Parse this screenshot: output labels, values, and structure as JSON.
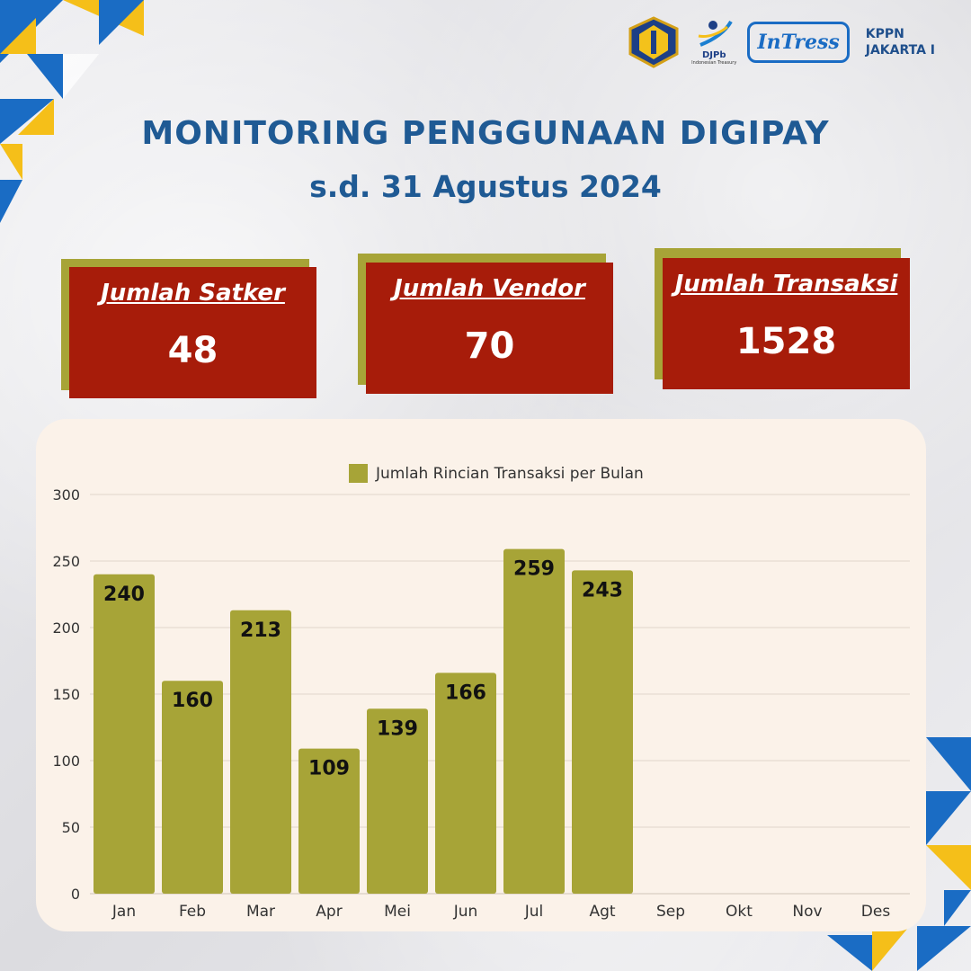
{
  "header": {
    "title": "MONITORING PENGGUNAAN DIGIPAY",
    "subtitle": "s.d. 31 Agustus 2024",
    "logos": {
      "djpb": "DJPb",
      "djpb_sub": "Indonesian Treasury",
      "intress": "InTress",
      "kppn_line1": "KPPN",
      "kppn_line2": "JAKARTA I"
    }
  },
  "cards": [
    {
      "label": "Jumlah Satker",
      "value": "48"
    },
    {
      "label": "Jumlah Vendor",
      "value": "70"
    },
    {
      "label": "Jumlah Transaksi",
      "value": "1528"
    }
  ],
  "colors": {
    "bar": "#a7a437",
    "card": "#a71c0a",
    "card_shadow": "#a7a437",
    "title": "#1f5a94",
    "panel": "#fbf2e9"
  },
  "chart_data": {
    "type": "bar",
    "categories": [
      "Jan",
      "Feb",
      "Mar",
      "Apr",
      "Mei",
      "Jun",
      "Jul",
      "Agt",
      "Sep",
      "Okt",
      "Nov",
      "Des"
    ],
    "series": [
      {
        "name": "Jumlah Rincian Transaksi per Bulan",
        "values": [
          240,
          160,
          213,
          109,
          139,
          166,
          259,
          243,
          null,
          null,
          null,
          null
        ]
      }
    ],
    "ylim": [
      0,
      300
    ],
    "yticks": [
      0,
      50,
      100,
      150,
      200,
      250,
      300
    ],
    "grid": true,
    "legend": "top-center",
    "data_labels": true
  }
}
